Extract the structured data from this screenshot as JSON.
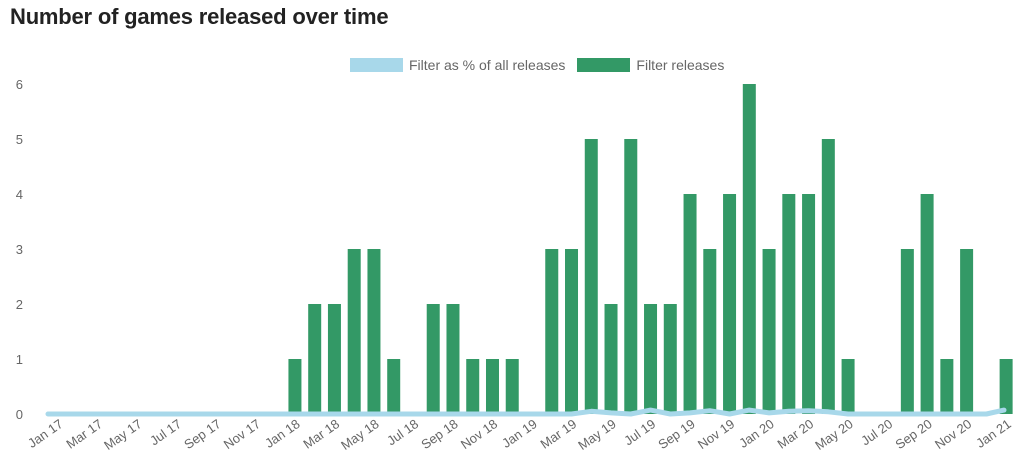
{
  "colors": {
    "releases": "#339966",
    "percent": "#a8d8ea",
    "axis_text": "#666666",
    "title": "#222222"
  },
  "chart_data": {
    "type": "bar",
    "title": "Number of games released over time",
    "x": [
      "Jan 17",
      "Feb 17",
      "Mar 17",
      "Apr 17",
      "May 17",
      "Jun 17",
      "Jul 17",
      "Aug 17",
      "Sep 17",
      "Oct 17",
      "Nov 17",
      "Dec 17",
      "Jan 18",
      "Feb 18",
      "Mar 18",
      "Apr 18",
      "May 18",
      "Jun 18",
      "Jul 18",
      "Aug 18",
      "Sep 18",
      "Oct 18",
      "Nov 18",
      "Dec 18",
      "Jan 19",
      "Feb 19",
      "Mar 19",
      "Apr 19",
      "May 19",
      "Jun 19",
      "Jul 19",
      "Aug 19",
      "Sep 19",
      "Oct 19",
      "Nov 19",
      "Dec 19",
      "Jan 20",
      "Feb 20",
      "Mar 20",
      "Apr 20",
      "May 20",
      "Jun 20",
      "Jul 20",
      "Aug 20",
      "Sep 20",
      "Oct 20",
      "Nov 20",
      "Dec 20",
      "Jan 21"
    ],
    "x_tick_labels": [
      "Jan 17",
      "Mar 17",
      "May 17",
      "Jul 17",
      "Sep 17",
      "Nov 17",
      "Jan 18",
      "Mar 18",
      "May 18",
      "Jul 18",
      "Sep 18",
      "Nov 18",
      "Jan 19",
      "Mar 19",
      "May 19",
      "Jul 19",
      "Sep 19",
      "Nov 19",
      "Jan 20",
      "Mar 20",
      "May 20",
      "Jul 20",
      "Sep 20",
      "Nov 20",
      "Jan 21"
    ],
    "y_ticks": [
      0,
      1,
      2,
      3,
      4,
      5,
      6
    ],
    "ylim": [
      0,
      6
    ],
    "legend_position": "top-center",
    "series": [
      {
        "name": "Filter as % of all releases",
        "type": "line",
        "values": [
          0,
          0,
          0,
          0,
          0,
          0,
          0,
          0,
          0,
          0,
          0,
          0,
          0,
          0,
          0,
          0,
          0,
          0,
          0,
          0,
          0,
          0,
          0,
          0,
          0,
          0,
          0,
          0.05,
          0.02,
          0,
          0.07,
          0,
          0.02,
          0.06,
          0,
          0.07,
          0.02,
          0.05,
          0.06,
          0.04,
          0,
          0,
          0,
          0,
          0,
          0,
          0,
          0,
          0.07
        ]
      },
      {
        "name": "Filter releases",
        "type": "bar",
        "values": [
          0,
          0,
          0,
          0,
          0,
          0,
          0,
          0,
          0,
          0,
          0,
          0,
          1,
          2,
          2,
          3,
          3,
          1,
          0,
          2,
          2,
          1,
          1,
          1,
          0,
          3,
          3,
          5,
          2,
          5,
          2,
          2,
          4,
          3,
          4,
          6,
          3,
          4,
          4,
          5,
          1,
          0,
          0,
          3,
          4,
          1,
          3,
          0,
          1
        ]
      }
    ]
  }
}
